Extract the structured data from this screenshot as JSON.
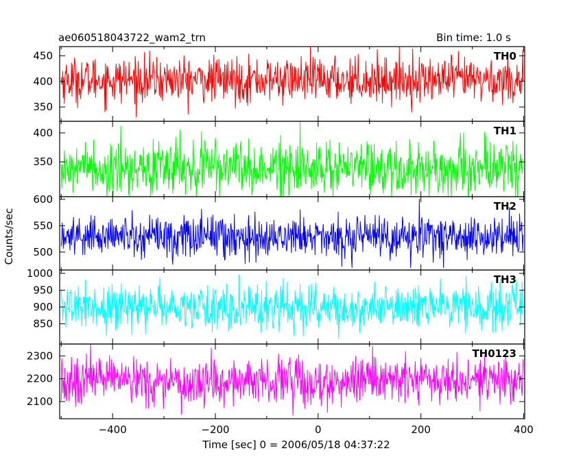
{
  "header": {
    "title": "ae060518043722_wam2_trn",
    "bin_time": "Bin time: 1.0 s"
  },
  "axes": {
    "ylabel": "Counts/sec",
    "xlabel": "Time [sec] 0 = 2006/05/18 04:37:22"
  },
  "chart_data": {
    "type": "line",
    "title": "ae060518043722_wam2_trn",
    "xlabel": "Time [sec] 0 = 2006/05/18 04:37:22",
    "ylabel": "Counts/sec",
    "xlim": [
      -503,
      402
    ],
    "x_range": [
      -500,
      399
    ],
    "bin_time_s": 1.0,
    "xticks": [
      -400,
      -200,
      0,
      200,
      400
    ],
    "grid": false,
    "series": [
      {
        "name": "TH0",
        "color": "#ff0000",
        "ylim": [
          322,
          468
        ],
        "yticks": [
          350,
          400,
          450
        ],
        "mean": 403,
        "noise_sd": 22,
        "min": 330,
        "max": 468
      },
      {
        "name": "TH1",
        "color": "#00ff00",
        "ylim": [
          290,
          420
        ],
        "yticks": [
          350,
          400
        ],
        "mean": 339,
        "noise_sd": 24,
        "min": 290,
        "max": 420
      },
      {
        "name": "TH2",
        "color": "#0000ff",
        "ylim": [
          466,
          605
        ],
        "yticks": [
          500,
          550,
          600
        ],
        "mean": 530,
        "noise_sd": 20,
        "min": 470,
        "max": 605
      },
      {
        "name": "TH3",
        "color": "#00ffff",
        "ylim": [
          790,
          1010
        ],
        "yticks": [
          850,
          900,
          950,
          1000
        ],
        "mean": 900,
        "noise_sd": 33,
        "min": 800,
        "max": 1010
      },
      {
        "name": "TH0123",
        "color": "#ff00ff",
        "ylim": [
          2025,
          2352
        ],
        "yticks": [
          2100,
          2200,
          2300
        ],
        "mean": 2190,
        "noise_sd": 50,
        "min": 2030,
        "max": 2350
      }
    ]
  }
}
